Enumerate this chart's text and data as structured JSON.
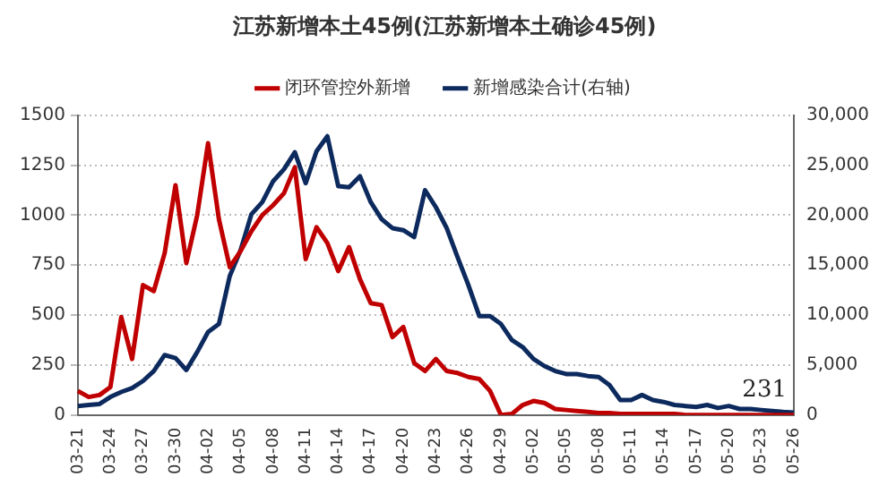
{
  "chart_data": {
    "type": "line",
    "title": "江苏新增本土45例(江苏新增本土确诊45例)",
    "categories": [
      "03-21",
      null,
      null,
      "03-24",
      null,
      null,
      "03-27",
      null,
      null,
      "03-30",
      null,
      null,
      "04-02",
      null,
      null,
      "04-05",
      null,
      null,
      "04-08",
      null,
      null,
      "04-11",
      null,
      null,
      "04-14",
      null,
      null,
      "04-17",
      null,
      null,
      "04-20",
      null,
      null,
      "04-23",
      null,
      null,
      "04-26",
      null,
      null,
      "04-29",
      null,
      null,
      "05-02",
      null,
      null,
      "05-05",
      null,
      null,
      "05-08",
      null,
      null,
      "05-11",
      null,
      null,
      "05-14",
      null,
      null,
      "05-17",
      null,
      null,
      "05-20",
      null,
      null,
      "05-23",
      null,
      null,
      "05-26"
    ],
    "series": [
      {
        "name": "闭环管控外新增",
        "color": "#c00000",
        "values": [
          120,
          90,
          100,
          140,
          490,
          280,
          650,
          620,
          810,
          1150,
          760,
          1000,
          1360,
          980,
          740,
          820,
          920,
          1000,
          1050,
          1110,
          1240,
          780,
          940,
          860,
          720,
          840,
          680,
          560,
          550,
          390,
          440,
          260,
          220,
          280,
          220,
          210,
          190,
          180,
          120,
          0,
          5,
          50,
          70,
          60,
          30,
          25,
          20,
          15,
          10,
          10,
          5,
          5,
          5,
          5,
          5,
          5,
          0,
          0,
          0,
          0,
          0,
          0,
          0,
          0,
          0,
          0,
          0
        ]
      },
      {
        "name": "新增感染合计(右轴)",
        "color": "#0d2a5e",
        "axis": "y2",
        "values": [
          900,
          1000,
          1100,
          1800,
          2300,
          2700,
          3400,
          4400,
          6000,
          5700,
          4500,
          6300,
          8300,
          9100,
          13900,
          16500,
          20100,
          21300,
          23400,
          24600,
          26300,
          23200,
          26400,
          27900,
          22900,
          22800,
          23900,
          21300,
          19600,
          18700,
          18500,
          17800,
          22500,
          20800,
          18700,
          15800,
          13000,
          9900,
          9900,
          9100,
          7500,
          6800,
          5600,
          4900,
          4400,
          4100,
          4100,
          3900,
          3800,
          3000,
          1500,
          1500,
          2000,
          1500,
          1300,
          1000,
          900,
          800,
          1000,
          700,
          900,
          600,
          600,
          500,
          400,
          300,
          231
        ]
      }
    ],
    "ylim": [
      0,
      1500
    ],
    "yticks": [
      0,
      250,
      500,
      750,
      1000,
      1250,
      1500
    ],
    "y2lim": [
      0,
      30000
    ],
    "y2ticks": [
      {
        "value": 0,
        "label": "0"
      },
      {
        "value": 5000,
        "label": "5,000"
      },
      {
        "value": 10000,
        "label": "10,000"
      },
      {
        "value": 15000,
        "label": "15,000"
      },
      {
        "value": 20000,
        "label": "20,000"
      },
      {
        "value": 25000,
        "label": "25,000"
      },
      {
        "value": 30000,
        "label": "30,000"
      }
    ],
    "annotations": [
      "231"
    ],
    "grid": "y",
    "legend": "top",
    "marker": "none",
    "line_style": "solid"
  }
}
